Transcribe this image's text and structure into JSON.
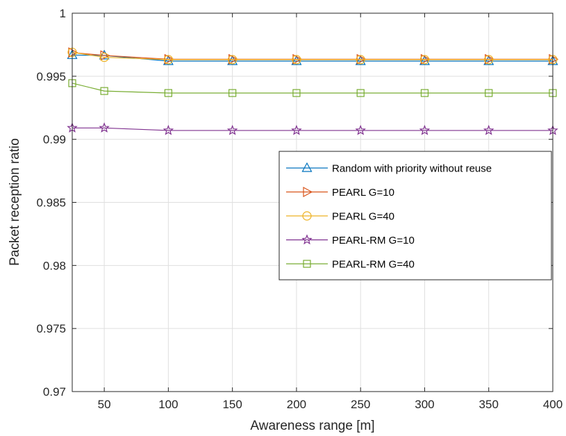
{
  "chart_data": {
    "type": "line",
    "xlabel": "Awareness range [m]",
    "ylabel": "Packet reception ratio",
    "xlim": [
      25,
      400
    ],
    "ylim": [
      0.97,
      1.0
    ],
    "xticks": [
      50,
      100,
      150,
      200,
      250,
      300,
      350,
      400
    ],
    "xtick_labels": [
      "50",
      "100",
      "150",
      "200",
      "250",
      "300",
      "350",
      "400"
    ],
    "yticks": [
      0.97,
      0.975,
      0.98,
      0.985,
      0.99,
      0.995,
      1.0
    ],
    "ytick_labels": [
      "0.97",
      "0.975",
      "0.98",
      "0.985",
      "0.99",
      "0.995",
      "1"
    ],
    "grid": true,
    "legend_position": "center-right",
    "x": [
      25,
      50,
      100,
      150,
      200,
      250,
      300,
      350,
      400
    ],
    "series": [
      {
        "name": "Random with priority without reuse",
        "color": "#0072BD",
        "marker": "triangle-up",
        "values": [
          0.99668,
          0.99665,
          0.9962,
          0.9962,
          0.9962,
          0.9962,
          0.9962,
          0.9962,
          0.9962
        ]
      },
      {
        "name": "PEARL G=10",
        "color": "#D95319",
        "marker": "triangle-right",
        "values": [
          0.99688,
          0.99665,
          0.99635,
          0.99635,
          0.99635,
          0.99635,
          0.99635,
          0.99635,
          0.99635
        ]
      },
      {
        "name": "PEARL G=40",
        "color": "#EDB120",
        "marker": "circle",
        "values": [
          0.9969,
          0.9965,
          0.99632,
          0.99632,
          0.99632,
          0.99632,
          0.99632,
          0.99632,
          0.99632
        ]
      },
      {
        "name": "PEARL-RM G=10",
        "color": "#7E2F8E",
        "marker": "star",
        "values": [
          0.9909,
          0.9909,
          0.9907,
          0.9907,
          0.9907,
          0.9907,
          0.9907,
          0.9907,
          0.9907
        ]
      },
      {
        "name": "PEARL-RM G=40",
        "color": "#77AC30",
        "marker": "square",
        "values": [
          0.99445,
          0.99383,
          0.99367,
          0.99367,
          0.99367,
          0.99367,
          0.99367,
          0.99367,
          0.99367
        ]
      }
    ]
  }
}
